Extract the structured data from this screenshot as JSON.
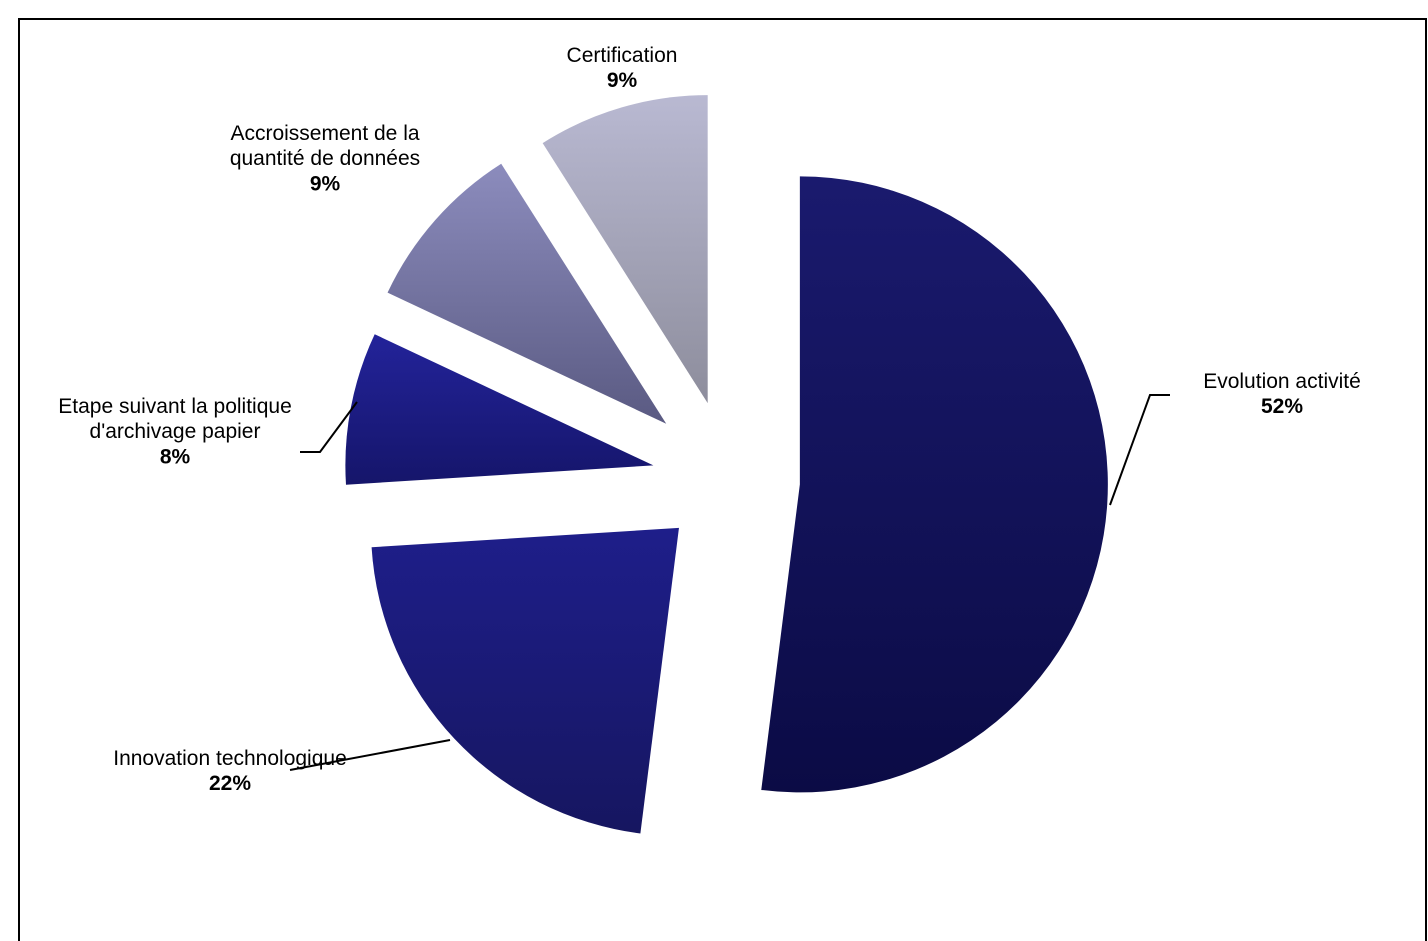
{
  "chart_data": {
    "type": "pie",
    "categories": [
      "Evolution activité",
      "Innovation technologique",
      "Etape suivant la politique d'archivage papier",
      "Accroissement de la quantité de données",
      "Certification"
    ],
    "values": [
      52,
      22,
      8,
      9,
      9
    ],
    "value_labels": [
      "52%",
      "22%",
      "8%",
      "9%",
      "9%"
    ],
    "colors": [
      [
        "#1a1a6e",
        "#0b0b45"
      ],
      [
        "#1e1e8a",
        "#161660"
      ],
      [
        "#23239a",
        "#15156a"
      ],
      [
        "#8c8cbd",
        "#5a5a82"
      ],
      [
        "#b9b9d2",
        "#8d8d9c"
      ]
    ]
  }
}
